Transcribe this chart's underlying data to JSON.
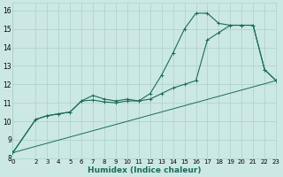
{
  "title": "",
  "xlabel": "Humidex (Indice chaleur)",
  "bg_color": "#cce8e4",
  "grid_color": "#aad0cb",
  "line_color": "#1a6b5e",
  "xlim": [
    0,
    23
  ],
  "ylim": [
    8,
    16.4
  ],
  "xtick_labels": [
    "0",
    "2",
    "3",
    "4",
    "5",
    "6",
    "7",
    "8",
    "9",
    "10",
    "11",
    "12",
    "13",
    "14",
    "15",
    "16",
    "17",
    "18",
    "19",
    "20",
    "21",
    "22",
    "23"
  ],
  "xtick_vals": [
    0,
    2,
    3,
    4,
    5,
    6,
    7,
    8,
    9,
    10,
    11,
    12,
    13,
    14,
    15,
    16,
    17,
    18,
    19,
    20,
    21,
    22,
    23
  ],
  "ytick_vals": [
    8,
    9,
    10,
    11,
    12,
    13,
    14,
    15,
    16
  ],
  "line1_x": [
    0,
    2,
    3,
    4,
    5,
    6,
    7,
    8,
    9,
    10,
    11,
    12,
    13,
    14,
    15,
    16,
    17,
    18,
    19,
    20,
    21,
    22,
    23
  ],
  "line1_y": [
    8.3,
    10.1,
    10.3,
    10.4,
    10.5,
    11.1,
    11.15,
    11.05,
    11.0,
    11.1,
    11.1,
    11.5,
    12.5,
    13.7,
    15.0,
    15.85,
    15.85,
    15.3,
    15.2,
    15.2,
    15.2,
    12.8,
    12.2
  ],
  "line2_x": [
    0,
    2,
    3,
    4,
    5,
    6,
    7,
    8,
    9,
    10,
    11,
    12,
    13,
    14,
    15,
    16,
    17,
    18,
    19,
    20,
    21,
    22,
    23
  ],
  "line2_y": [
    8.3,
    10.1,
    10.3,
    10.4,
    10.5,
    11.1,
    11.4,
    11.2,
    11.1,
    11.2,
    11.1,
    11.2,
    11.5,
    11.8,
    12.0,
    12.2,
    14.4,
    14.8,
    15.2,
    15.2,
    15.2,
    12.8,
    12.2
  ],
  "line3_x": [
    0,
    23
  ],
  "line3_y": [
    8.3,
    12.2
  ]
}
